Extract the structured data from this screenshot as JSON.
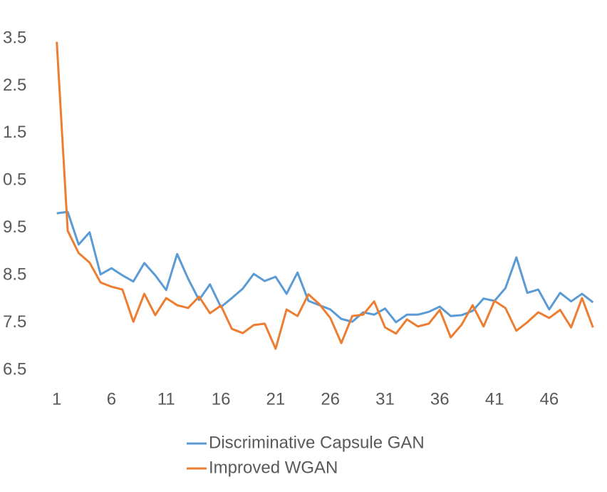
{
  "chart_data": {
    "type": "line",
    "x": [
      1,
      2,
      3,
      4,
      5,
      6,
      7,
      8,
      9,
      10,
      11,
      12,
      13,
      14,
      15,
      16,
      17,
      18,
      19,
      20,
      21,
      22,
      23,
      24,
      25,
      26,
      27,
      28,
      29,
      30,
      31,
      32,
      33,
      34,
      35,
      36,
      37,
      38,
      39,
      40,
      41,
      42,
      43,
      44,
      45,
      46,
      47,
      48,
      49,
      50
    ],
    "xlim": [
      0.5,
      50.5
    ],
    "xticks": [
      1,
      6,
      11,
      16,
      21,
      26,
      31,
      36,
      41,
      46
    ],
    "ylim": [
      6.5,
      13.5
    ],
    "yticks": [
      6.5,
      7.5,
      8.5,
      9.5,
      {
        "value": 10.5,
        "label": "0.5"
      },
      {
        "value": 11.5,
        "label": "1.5"
      },
      {
        "value": 12.5,
        "label": "2.5"
      },
      {
        "value": 13.5,
        "label": "3.5"
      }
    ],
    "grid": false,
    "legend": "bottom",
    "series": [
      {
        "name": "Discriminative Capsule GAN",
        "color": "#5b9bd5",
        "values": [
          9.81,
          9.84,
          9.15,
          9.41,
          8.52,
          8.65,
          8.5,
          8.37,
          8.76,
          8.5,
          8.19,
          8.95,
          8.43,
          7.98,
          8.31,
          7.83,
          8.02,
          8.22,
          8.53,
          8.38,
          8.47,
          8.11,
          8.56,
          7.96,
          7.87,
          7.78,
          7.58,
          7.52,
          7.72,
          7.67,
          7.8,
          7.51,
          7.67,
          7.67,
          7.73,
          7.84,
          7.64,
          7.66,
          7.75,
          8.01,
          7.96,
          8.23,
          8.88,
          8.13,
          8.2,
          7.78,
          8.13,
          7.95,
          8.11,
          7.93
        ]
      },
      {
        "name": "Improved WGAN",
        "color": "#ed7d31",
        "values": [
          13.43,
          9.44,
          8.97,
          8.77,
          8.35,
          8.26,
          8.2,
          7.52,
          8.11,
          7.66,
          8.02,
          7.87,
          7.81,
          8.05,
          7.7,
          7.86,
          7.37,
          7.28,
          7.45,
          7.48,
          6.95,
          7.78,
          7.64,
          8.1,
          7.89,
          7.6,
          7.07,
          7.64,
          7.67,
          7.95,
          7.4,
          7.27,
          7.57,
          7.42,
          7.48,
          7.77,
          7.19,
          7.46,
          7.87,
          7.42,
          7.96,
          7.81,
          7.33,
          7.51,
          7.72,
          7.6,
          7.77,
          7.4,
          8.02,
          7.4
        ]
      }
    ]
  }
}
